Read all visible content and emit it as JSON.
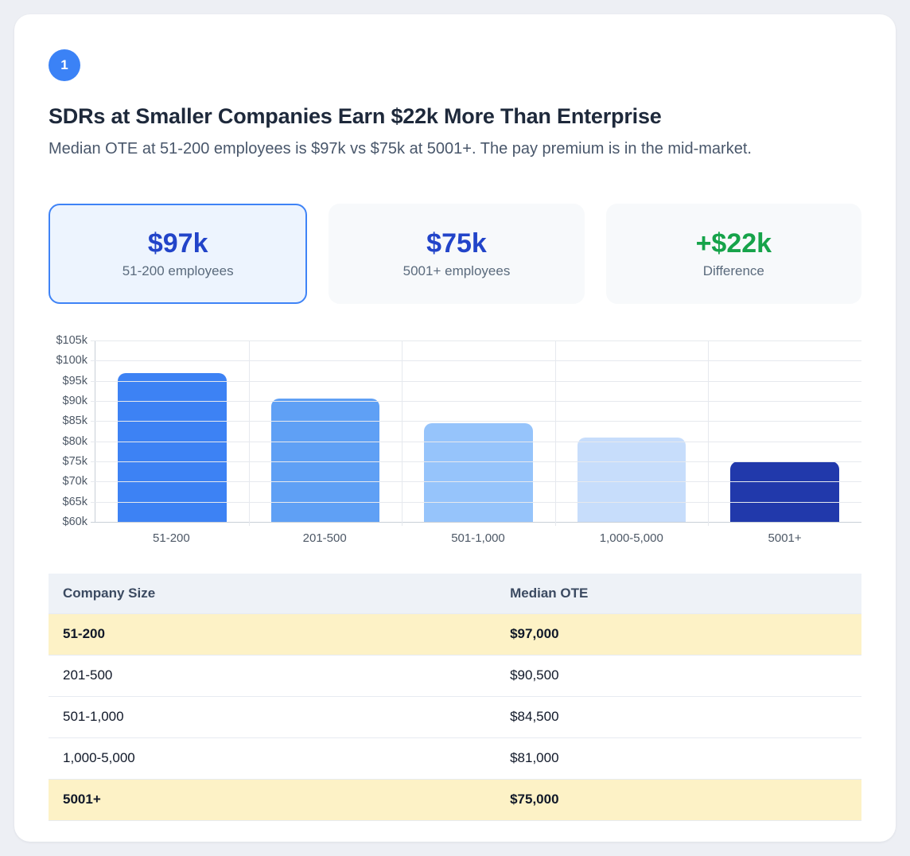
{
  "badge": {
    "number": "1"
  },
  "header": {
    "title": "SDRs at Smaller Companies Earn $22k More Than Enterprise",
    "subtitle": "Median OTE at 51-200 employees is $97k vs $75k at 5001+. The pay premium is in the mid-market."
  },
  "stat_cards": [
    {
      "value": "$97k",
      "label": "51-200 employees",
      "value_color": "#2244c9",
      "emphasized": true
    },
    {
      "value": "$75k",
      "label": "5001+ employees",
      "value_color": "#2244c9",
      "emphasized": false
    },
    {
      "value": "+$22k",
      "label": "Difference",
      "value_color": "#16a34a",
      "emphasized": false
    }
  ],
  "chart_data": {
    "type": "bar",
    "title": "",
    "xlabel": "",
    "ylabel": "",
    "categories": [
      "51-200",
      "201-500",
      "501-1,000",
      "1,000-5,000",
      "5001+"
    ],
    "values": [
      97000,
      90500,
      84500,
      81000,
      75000
    ],
    "bar_colors": [
      "#3d82f4",
      "#5fa0f5",
      "#96c4fb",
      "#c7ddfb",
      "#2139ab"
    ],
    "ylim": [
      60000,
      105000
    ],
    "ytick_step": 5000,
    "ytick_labels": [
      "$105k",
      "$100k",
      "$95k",
      "$90k",
      "$85k",
      "$80k",
      "$75k",
      "$70k",
      "$65k",
      "$60k"
    ],
    "grid": true,
    "legend": false
  },
  "table": {
    "columns": [
      "Company Size",
      "Median OTE"
    ],
    "rows": [
      {
        "company_size": "51-200",
        "median_ote": "$97,000",
        "highlighted": true
      },
      {
        "company_size": "201-500",
        "median_ote": "$90,500",
        "highlighted": false
      },
      {
        "company_size": "501-1,000",
        "median_ote": "$84,500",
        "highlighted": false
      },
      {
        "company_size": "1,000-5,000",
        "median_ote": "$81,000",
        "highlighted": false
      },
      {
        "company_size": "5001+",
        "median_ote": "$75,000",
        "highlighted": true
      }
    ]
  },
  "colors": {
    "accent_blue": "#3b82f6",
    "deep_blue": "#2244c9",
    "green": "#16a34a",
    "highlight_row": "#fdf2c6",
    "card_bg": "#ffffff",
    "page_bg": "#edeff4"
  }
}
